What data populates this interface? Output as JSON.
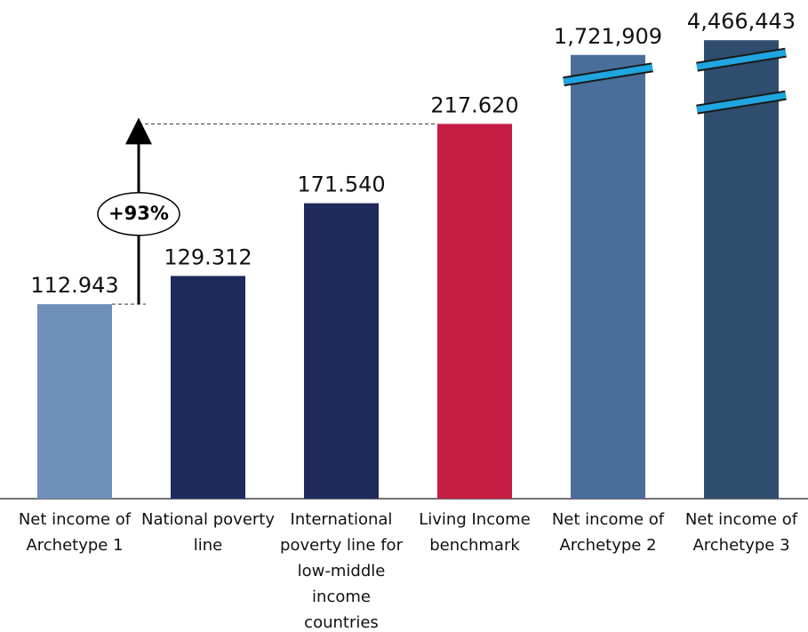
{
  "chart_data": {
    "type": "bar",
    "categories": [
      "Net income of Archetype 1",
      "National poverty line",
      "International poverty line for low-middle income countries",
      "Living Income benchmark",
      "Net income of Archetype 2",
      "Net income of Archetype 3"
    ],
    "values": [
      112943,
      129312,
      171540,
      217620,
      1721909,
      4466443
    ],
    "value_labels": [
      "112.943",
      "129.312",
      "171.540",
      "217.620",
      "1,721,909",
      "4,466,443"
    ],
    "colors": [
      "#6f8fbb",
      "#1e2a5a",
      "#1e2a5a",
      "#c41e45",
      "#4a6e9a",
      "#2f4d6d"
    ],
    "ylim": [
      0,
      240000
    ],
    "axis_break": true,
    "annotation": "+93%"
  }
}
